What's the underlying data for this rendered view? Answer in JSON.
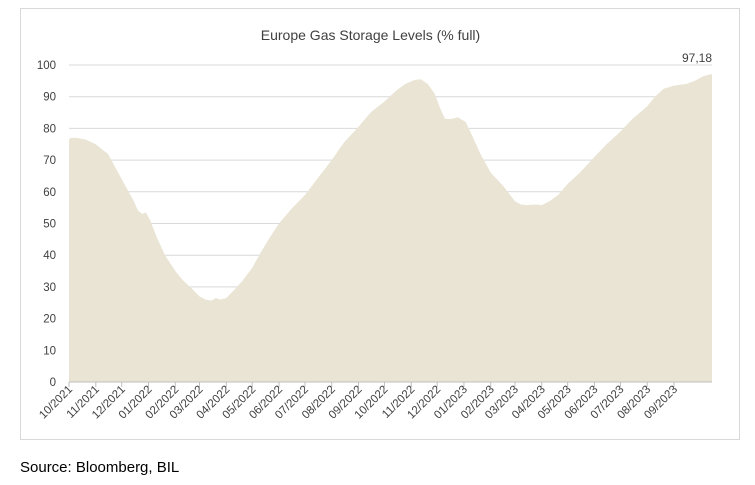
{
  "chart_data": {
    "type": "area",
    "title": "Europe Gas Storage Levels (% full)",
    "xlabel": "",
    "ylabel": "",
    "ylim": [
      0,
      100
    ],
    "yticks": [
      0,
      10,
      20,
      30,
      40,
      50,
      60,
      70,
      80,
      90,
      100
    ],
    "grid": true,
    "xtick_labels": [
      "10/2021",
      "11/2021",
      "12/2021",
      "01/2022",
      "02/2022",
      "03/2022",
      "04/2022",
      "05/2022",
      "06/2022",
      "07/2022",
      "08/2022",
      "09/2022",
      "10/2022",
      "11/2022",
      "12/2022",
      "01/2023",
      "02/2023",
      "03/2023",
      "04/2023",
      "05/2023",
      "06/2023",
      "07/2023",
      "08/2023",
      "09/2023"
    ],
    "x_range": [
      "2021-10-01",
      "2023-10-15"
    ],
    "series": [
      {
        "color": "#e9e4d4",
        "points": [
          [
            "2021-10-01",
            76.5
          ],
          [
            "2021-10-03",
            77.0
          ],
          [
            "2021-10-10",
            77.0
          ],
          [
            "2021-10-20",
            76.5
          ],
          [
            "2021-11-01",
            75.0
          ],
          [
            "2021-11-10",
            73.0
          ],
          [
            "2021-11-15",
            72.0
          ],
          [
            "2021-11-25",
            67.0
          ],
          [
            "2021-12-05",
            62.0
          ],
          [
            "2021-12-15",
            57.0
          ],
          [
            "2021-12-20",
            54.0
          ],
          [
            "2021-12-25",
            53.0
          ],
          [
            "2021-12-29",
            53.5
          ],
          [
            "2022-01-03",
            51.0
          ],
          [
            "2022-01-10",
            46.0
          ],
          [
            "2022-01-20",
            40.0
          ],
          [
            "2022-02-01",
            35.0
          ],
          [
            "2022-02-10",
            32.0
          ],
          [
            "2022-02-20",
            29.5
          ],
          [
            "2022-03-01",
            27.0
          ],
          [
            "2022-03-08",
            26.0
          ],
          [
            "2022-03-15",
            25.7
          ],
          [
            "2022-03-20",
            26.5
          ],
          [
            "2022-03-25",
            26.0
          ],
          [
            "2022-04-01",
            26.5
          ],
          [
            "2022-04-10",
            29.0
          ],
          [
            "2022-04-20",
            32.0
          ],
          [
            "2022-05-01",
            36.0
          ],
          [
            "2022-05-10",
            40.5
          ],
          [
            "2022-05-20",
            45.0
          ],
          [
            "2022-06-01",
            50.0
          ],
          [
            "2022-06-15",
            54.5
          ],
          [
            "2022-07-01",
            59.0
          ],
          [
            "2022-07-15",
            64.0
          ],
          [
            "2022-08-01",
            70.0
          ],
          [
            "2022-08-15",
            75.5
          ],
          [
            "2022-09-01",
            80.5
          ],
          [
            "2022-09-15",
            85.0
          ],
          [
            "2022-10-01",
            88.5
          ],
          [
            "2022-10-15",
            92.0
          ],
          [
            "2022-10-25",
            94.0
          ],
          [
            "2022-11-05",
            95.3
          ],
          [
            "2022-11-12",
            95.5
          ],
          [
            "2022-11-20",
            94.0
          ],
          [
            "2022-11-28",
            91.0
          ],
          [
            "2022-12-05",
            86.0
          ],
          [
            "2022-12-10",
            83.0
          ],
          [
            "2022-12-18",
            83.0
          ],
          [
            "2022-12-25",
            83.5
          ],
          [
            "2023-01-03",
            82.0
          ],
          [
            "2023-01-10",
            78.0
          ],
          [
            "2023-01-20",
            72.0
          ],
          [
            "2023-02-01",
            66.0
          ],
          [
            "2023-02-15",
            62.0
          ],
          [
            "2023-03-01",
            57.0
          ],
          [
            "2023-03-08",
            56.0
          ],
          [
            "2023-03-15",
            55.8
          ],
          [
            "2023-03-25",
            56.0
          ],
          [
            "2023-04-01",
            55.8
          ],
          [
            "2023-04-10",
            57.0
          ],
          [
            "2023-04-20",
            59.0
          ],
          [
            "2023-05-01",
            62.5
          ],
          [
            "2023-05-15",
            66.0
          ],
          [
            "2023-06-01",
            71.0
          ],
          [
            "2023-06-15",
            75.0
          ],
          [
            "2023-07-01",
            79.0
          ],
          [
            "2023-07-15",
            83.0
          ],
          [
            "2023-08-01",
            87.0
          ],
          [
            "2023-08-10",
            90.0
          ],
          [
            "2023-08-20",
            92.5
          ],
          [
            "2023-09-01",
            93.5
          ],
          [
            "2023-09-15",
            94.0
          ],
          [
            "2023-09-25",
            95.0
          ],
          [
            "2023-10-05",
            96.5
          ],
          [
            "2023-10-15",
            97.18
          ]
        ]
      }
    ],
    "annotations": [
      {
        "text": "97,18",
        "x": "2023-10-15",
        "y": 97.18
      }
    ]
  },
  "source_text": "Source: Bloomberg, BIL"
}
